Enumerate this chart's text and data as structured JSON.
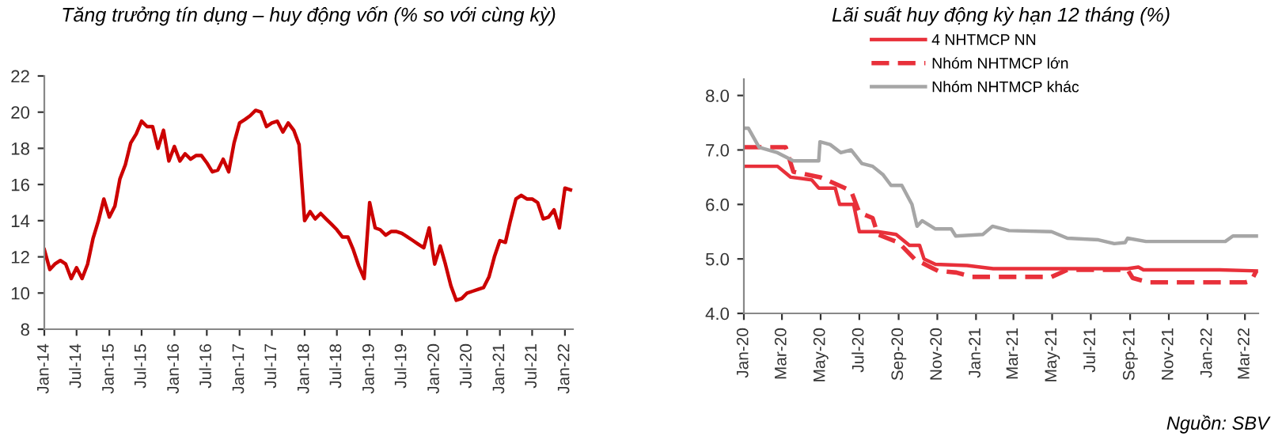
{
  "chart_data": [
    {
      "type": "line",
      "title": "Tăng trưởng tín dụng – huy động vốn (% so với cùng kỳ)",
      "legend": false,
      "grid": false,
      "x": [
        "2014-01",
        "2014-02",
        "2014-03",
        "2014-04",
        "2014-05",
        "2014-06",
        "2014-07",
        "2014-08",
        "2014-09",
        "2014-10",
        "2014-11",
        "2014-12",
        "2015-01",
        "2015-02",
        "2015-03",
        "2015-04",
        "2015-05",
        "2015-06",
        "2015-07",
        "2015-08",
        "2015-09",
        "2015-10",
        "2015-11",
        "2015-12",
        "2016-01",
        "2016-02",
        "2016-03",
        "2016-04",
        "2016-05",
        "2016-06",
        "2016-07",
        "2016-08",
        "2016-09",
        "2016-10",
        "2016-11",
        "2016-12",
        "2017-01",
        "2017-02",
        "2017-03",
        "2017-04",
        "2017-05",
        "2017-06",
        "2017-07",
        "2017-08",
        "2017-09",
        "2017-10",
        "2017-11",
        "2017-12",
        "2018-01",
        "2018-02",
        "2018-03",
        "2018-04",
        "2018-05",
        "2018-06",
        "2018-07",
        "2018-08",
        "2018-09",
        "2018-10",
        "2018-11",
        "2018-12",
        "2019-01",
        "2019-02",
        "2019-03",
        "2019-04",
        "2019-05",
        "2019-06",
        "2019-07",
        "2019-08",
        "2019-09",
        "2019-10",
        "2019-11",
        "2019-12",
        "2020-01",
        "2020-02",
        "2020-03",
        "2020-04",
        "2020-05",
        "2020-06",
        "2020-07",
        "2020-08",
        "2020-09",
        "2020-10",
        "2020-11",
        "2020-12",
        "2021-01",
        "2021-02",
        "2021-03",
        "2021-04",
        "2021-05",
        "2021-06",
        "2021-07",
        "2021-08",
        "2021-09",
        "2021-10",
        "2021-11",
        "2021-12",
        "2022-01",
        "2022-02"
      ],
      "series": [
        {
          "color": "#cc0000",
          "line_style": "solid",
          "values": [
            12.4,
            11.3,
            11.6,
            11.8,
            11.6,
            10.8,
            11.4,
            10.8,
            11.6,
            13.0,
            14.0,
            15.2,
            14.2,
            14.8,
            16.3,
            17.1,
            18.3,
            18.8,
            19.5,
            19.2,
            19.2,
            18.0,
            19.0,
            17.3,
            18.1,
            17.3,
            17.7,
            17.4,
            17.6,
            17.6,
            17.2,
            16.7,
            16.8,
            17.4,
            16.7,
            18.3,
            19.4,
            19.6,
            19.8,
            20.1,
            20.0,
            19.2,
            19.4,
            19.5,
            18.9,
            19.4,
            19.0,
            18.2,
            14.0,
            14.5,
            14.1,
            14.4,
            14.1,
            13.8,
            13.5,
            13.1,
            13.1,
            12.4,
            11.5,
            10.8,
            15.0,
            13.6,
            13.5,
            13.2,
            13.4,
            13.4,
            13.3,
            13.1,
            12.9,
            12.7,
            12.5,
            13.6,
            11.6,
            12.6,
            11.6,
            10.4,
            9.6,
            9.7,
            10.0,
            10.1,
            10.2,
            10.3,
            10.9,
            12.0,
            12.9,
            12.8,
            14.0,
            15.2,
            15.4,
            15.2,
            15.2,
            15.0,
            14.1,
            14.2,
            14.6,
            13.6,
            15.8,
            15.7
          ]
        }
      ],
      "xlim": [
        "2014-01-01",
        "2022-02-15"
      ],
      "xticks": [
        {
          "value": "2014-01-01",
          "label": "Jan-14"
        },
        {
          "value": "2014-07-01",
          "label": "Jul-14"
        },
        {
          "value": "2015-01-01",
          "label": "Jan-15"
        },
        {
          "value": "2015-07-01",
          "label": "Jul-15"
        },
        {
          "value": "2016-01-01",
          "label": "Jan-16"
        },
        {
          "value": "2016-07-01",
          "label": "Jul-16"
        },
        {
          "value": "2017-01-01",
          "label": "Jan-17"
        },
        {
          "value": "2017-07-01",
          "label": "Jul-17"
        },
        {
          "value": "2018-01-01",
          "label": "Jan-18"
        },
        {
          "value": "2018-07-01",
          "label": "Jul-18"
        },
        {
          "value": "2019-01-01",
          "label": "Jan-19"
        },
        {
          "value": "2019-07-01",
          "label": "Jul-19"
        },
        {
          "value": "2020-01-01",
          "label": "Jan-20"
        },
        {
          "value": "2020-07-01",
          "label": "Jul-20"
        },
        {
          "value": "2021-01-01",
          "label": "Jan-21"
        },
        {
          "value": "2021-07-01",
          "label": "Jul-21"
        },
        {
          "value": "2022-01-01",
          "label": "Jan-22"
        }
      ],
      "ylim": [
        8,
        22
      ],
      "yticks": [
        8,
        10,
        12,
        14,
        16,
        18,
        20,
        22
      ]
    },
    {
      "type": "line",
      "title": "Lãi suất huy động kỳ hạn 12 tháng (%)",
      "legend": "top",
      "grid": false,
      "series": [
        {
          "name": "4 NHTMCP NN",
          "color": "#e8303a",
          "line_style": "solid",
          "x": [
            "2020-01-01",
            "2020-02-23",
            "2020-03-15",
            "2020-04-17",
            "2020-04-28",
            "2020-05-24",
            "2020-05-31",
            "2020-06-22",
            "2020-07-01",
            "2020-07-30",
            "2020-08-28",
            "2020-09-18",
            "2020-10-04",
            "2020-10-11",
            "2020-10-29",
            "2020-12-18",
            "2021-01-28",
            "2021-08-28",
            "2021-09-14",
            "2021-09-22",
            "2022-01-20",
            "2022-03-19"
          ],
          "values": [
            6.7,
            6.7,
            6.5,
            6.45,
            6.3,
            6.3,
            6.0,
            6.0,
            5.5,
            5.5,
            5.45,
            5.25,
            5.25,
            5.0,
            4.9,
            4.88,
            4.82,
            4.82,
            4.85,
            4.8,
            4.8,
            4.78
          ]
        },
        {
          "name": "Nhóm NHTMCP lớn",
          "color": "#e8303a",
          "line_style": "dashed",
          "x": [
            "2020-01-01",
            "2020-03-07",
            "2020-03-19",
            "2020-04-30",
            "2020-05-20",
            "2020-06-18",
            "2020-07-01",
            "2020-07-22",
            "2020-07-30",
            "2020-09-01",
            "2020-09-26",
            "2020-10-21",
            "2020-11-02",
            "2020-12-01",
            "2020-12-26",
            "2021-04-30",
            "2021-05-25",
            "2021-08-28",
            "2021-09-05",
            "2021-09-30",
            "2022-03-02",
            "2022-03-11",
            "2022-03-19"
          ],
          "values": [
            7.05,
            7.05,
            6.6,
            6.5,
            6.4,
            6.25,
            5.85,
            5.75,
            5.45,
            5.3,
            5.0,
            4.85,
            4.78,
            4.75,
            4.67,
            4.67,
            4.8,
            4.8,
            4.65,
            4.57,
            4.57,
            4.6,
            4.78
          ]
        },
        {
          "name": "Nhóm NHTMCP khác",
          "color": "#a6a6a6",
          "line_style": "solid",
          "x": [
            "2020-01-01",
            "2020-01-08",
            "2020-01-25",
            "2020-02-23",
            "2020-03-19",
            "2020-04-28",
            "2020-04-30",
            "2020-05-16",
            "2020-06-02",
            "2020-06-18",
            "2020-07-05",
            "2020-07-22",
            "2020-08-07",
            "2020-08-20",
            "2020-09-06",
            "2020-09-22",
            "2020-09-30",
            "2020-10-08",
            "2020-10-29",
            "2020-11-23",
            "2020-11-30",
            "2021-01-12",
            "2021-01-27",
            "2021-02-22",
            "2021-04-30",
            "2021-05-25",
            "2021-07-13",
            "2021-08-07",
            "2021-08-24",
            "2021-08-28",
            "2021-09-26",
            "2022-01-29",
            "2022-02-10",
            "2022-03-19"
          ],
          "values": [
            7.4,
            7.4,
            7.05,
            6.95,
            6.8,
            6.8,
            7.15,
            7.1,
            6.95,
            7.0,
            6.75,
            6.7,
            6.55,
            6.35,
            6.35,
            6.0,
            5.6,
            5.7,
            5.55,
            5.55,
            5.42,
            5.45,
            5.6,
            5.52,
            5.5,
            5.38,
            5.35,
            5.28,
            5.3,
            5.38,
            5.32,
            5.32,
            5.42,
            5.42
          ]
        }
      ],
      "xlim": [
        "2020-01-01",
        "2022-03-22"
      ],
      "xticks": [
        {
          "value": "2020-01-01",
          "label": "Jan-20"
        },
        {
          "value": "2020-03-01",
          "label": "Mar-20"
        },
        {
          "value": "2020-05-01",
          "label": "May-20"
        },
        {
          "value": "2020-07-01",
          "label": "Jul-20"
        },
        {
          "value": "2020-09-01",
          "label": "Sep-20"
        },
        {
          "value": "2020-11-01",
          "label": "Nov-20"
        },
        {
          "value": "2021-01-01",
          "label": "Jan-21"
        },
        {
          "value": "2021-03-01",
          "label": "Mar-21"
        },
        {
          "value": "2021-05-01",
          "label": "May-21"
        },
        {
          "value": "2021-07-01",
          "label": "Jul-21"
        },
        {
          "value": "2021-09-01",
          "label": "Sep-21"
        },
        {
          "value": "2021-11-01",
          "label": "Nov-21"
        },
        {
          "value": "2022-01-01",
          "label": "Jan-22"
        },
        {
          "value": "2022-03-01",
          "label": "Mar-22"
        }
      ],
      "ylim": [
        4,
        8.3
      ],
      "yticks": [
        {
          "value": 4,
          "label": "4.0"
        },
        {
          "value": 5,
          "label": "5.0"
        },
        {
          "value": 6,
          "label": "6.0"
        },
        {
          "value": 7,
          "label": "7.0"
        },
        {
          "value": 8,
          "label": "8.0"
        }
      ],
      "annotations": [
        "Nguồn: SBV"
      ]
    }
  ]
}
